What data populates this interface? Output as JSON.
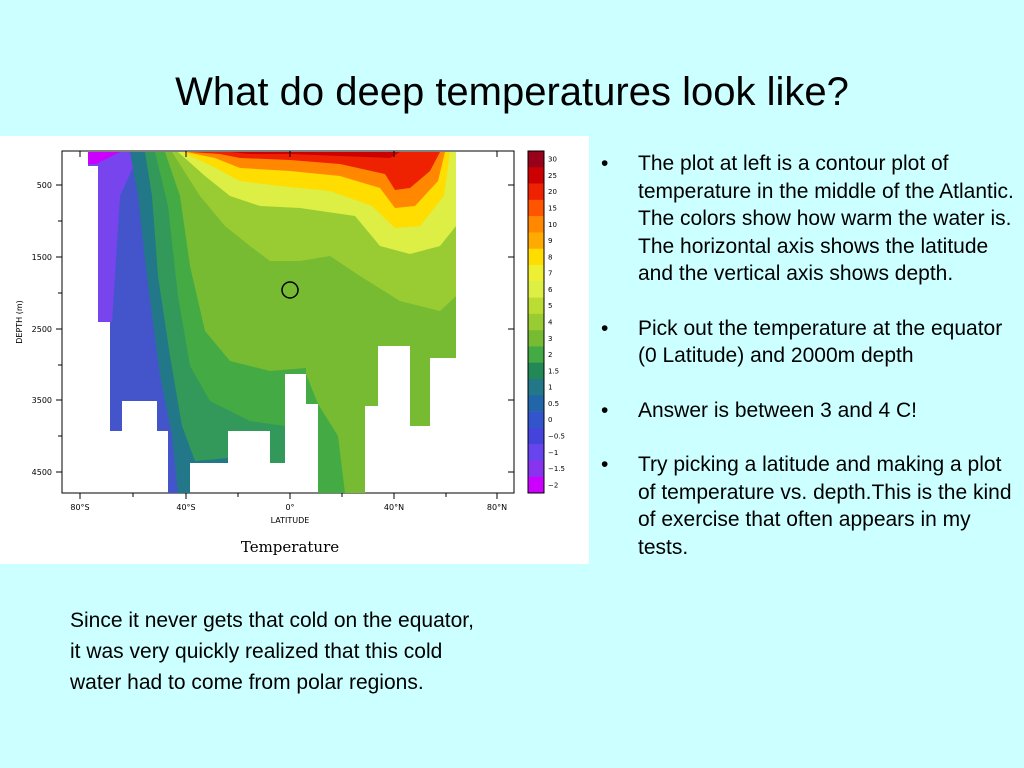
{
  "slide": {
    "title": "What do deep temperatures look like?"
  },
  "plot": {
    "y_axis_label": "DEPTH (m)",
    "y_ticks": [
      "500",
      "1500",
      "2500",
      "3500",
      "4500"
    ],
    "x_axis_label": "LATITUDE",
    "x_ticks": [
      "80°S",
      "40°S",
      "0°",
      "40°N",
      "80°N"
    ],
    "caption": "Temperature",
    "colorbar_labels": [
      "30",
      "25",
      "20",
      "15",
      "10",
      "9",
      "8",
      "7",
      "6",
      "5",
      "4",
      "3",
      "2",
      "1.5",
      "1",
      "0.5",
      "0",
      "−0.5",
      "−1",
      "−1.5",
      "−2"
    ],
    "colorbar_colors": [
      "#99001a",
      "#cc0000",
      "#ee2200",
      "#ff5500",
      "#ff8800",
      "#ffaa00",
      "#ffdd00",
      "#eeee33",
      "#ddee44",
      "#bbdd33",
      "#99cc33",
      "#77bb33",
      "#44aa44",
      "#228855",
      "#227788",
      "#2266aa",
      "#3355cc",
      "#4444dd",
      "#6644ee",
      "#8833ee",
      "#cc00ff"
    ],
    "marker_icon": "circle-marker-icon"
  },
  "bullets": [
    "The plot at left is a contour plot of temperature in the middle of the Atlantic. The colors show how warm the water is. The horizontal axis shows the latitude and the vertical axis shows depth.",
    "Pick out the temperature at the equator (0 Latitude) and 2000m depth",
    "Answer is between 3 and 4 C!",
    "Try picking a latitude and making a plot of temperature vs. depth.This is the kind of exercise that often appears in my tests."
  ],
  "bullet_symbol": "•",
  "note": "Since it never gets that cold on the equator, it was very quickly realized that this cold water had to come from polar regions."
}
